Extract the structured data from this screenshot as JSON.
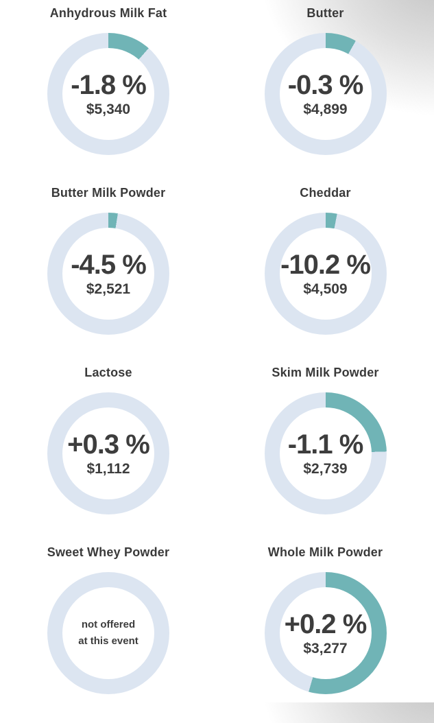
{
  "page": {
    "background_color": "#ffffff",
    "corner_shade_color": "#c6c6c6"
  },
  "chart_data": {
    "type": "donut-grid",
    "description": "Grid of 8 donut charts showing dairy commodity price change percent and average price; teal arc shows filled fraction of ring starting at 12 o'clock clockwise",
    "legend": "none",
    "colors": {
      "ring_track": "#dce5f1",
      "ring_fill": "#70b4b6",
      "text": "#3d3d3d"
    },
    "items": [
      {
        "title": "Anhydrous Milk Fat",
        "change": "-1.8 %",
        "price": "$5,340",
        "fill_fraction": 0.115,
        "offered": true
      },
      {
        "title": "Butter",
        "change": "-0.3 %",
        "price": "$4,899",
        "fill_fraction": 0.082,
        "offered": true
      },
      {
        "title": "Butter Milk Powder",
        "change": "-4.5 %",
        "price": "$2,521",
        "fill_fraction": 0.025,
        "offered": true
      },
      {
        "title": "Cheddar",
        "change": "-10.2 %",
        "price": "$4,509",
        "fill_fraction": 0.03,
        "offered": true
      },
      {
        "title": "Lactose",
        "change": "+0.3 %",
        "price": "$1,112",
        "fill_fraction": 0.0,
        "offered": true
      },
      {
        "title": "Skim Milk Powder",
        "change": "-1.1 %",
        "price": "$2,739",
        "fill_fraction": 0.245,
        "offered": true
      },
      {
        "title": "Sweet Whey Powder",
        "change": null,
        "price": null,
        "fill_fraction": 0.0,
        "offered": false,
        "not_offered_lines": [
          "not offered",
          "at this event"
        ]
      },
      {
        "title": "Whole Milk Powder",
        "change": "+0.2 %",
        "price": "$3,277",
        "fill_fraction": 0.545,
        "offered": true
      }
    ]
  }
}
